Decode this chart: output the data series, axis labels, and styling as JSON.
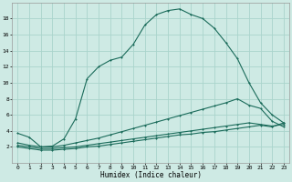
{
  "xlabel": "Humidex (Indice chaleur)",
  "background_color": "#ceeae4",
  "grid_color": "#aad4cc",
  "line_color": "#1a6b5a",
  "xlim": [
    -0.5,
    23.5
  ],
  "ylim": [
    0,
    20
  ],
  "xticks": [
    0,
    1,
    2,
    3,
    4,
    5,
    6,
    7,
    8,
    9,
    10,
    11,
    12,
    13,
    14,
    15,
    16,
    17,
    18,
    19,
    20,
    21,
    22,
    23
  ],
  "yticks": [
    2,
    4,
    6,
    8,
    10,
    12,
    14,
    16,
    18
  ],
  "series1_x": [
    0,
    1,
    2,
    3,
    4,
    5,
    6,
    7,
    8,
    9,
    10,
    11,
    12,
    13,
    14,
    15,
    16,
    17,
    18,
    19,
    20,
    21,
    22,
    23
  ],
  "series1_y": [
    3.7,
    3.2,
    2.0,
    2.1,
    3.0,
    5.5,
    10.5,
    12.0,
    12.8,
    13.2,
    14.8,
    17.2,
    18.5,
    19.0,
    19.2,
    18.5,
    18.0,
    16.8,
    15.0,
    13.0,
    10.0,
    7.5,
    6.0,
    5.0
  ],
  "series2_x": [
    0,
    1,
    2,
    3,
    4,
    5,
    6,
    7,
    8,
    9,
    10,
    11,
    12,
    13,
    14,
    15,
    16,
    17,
    18,
    19,
    20,
    21,
    22,
    23
  ],
  "series2_y": [
    2.5,
    2.2,
    2.0,
    2.0,
    2.2,
    2.5,
    2.8,
    3.1,
    3.5,
    3.9,
    4.3,
    4.7,
    5.1,
    5.5,
    5.9,
    6.3,
    6.7,
    7.1,
    7.5,
    8.0,
    7.2,
    6.8,
    5.2,
    4.5
  ],
  "series3_x": [
    0,
    1,
    2,
    3,
    4,
    5,
    6,
    7,
    8,
    9,
    10,
    11,
    12,
    13,
    14,
    15,
    16,
    17,
    18,
    19,
    20,
    21,
    22,
    23
  ],
  "series3_y": [
    2.2,
    2.0,
    1.8,
    1.8,
    1.9,
    2.0,
    2.2,
    2.4,
    2.6,
    2.8,
    3.0,
    3.2,
    3.4,
    3.6,
    3.8,
    4.0,
    4.2,
    4.4,
    4.6,
    4.8,
    5.0,
    4.8,
    4.6,
    4.8
  ],
  "series4_x": [
    0,
    1,
    2,
    3,
    4,
    5,
    6,
    7,
    8,
    9,
    10,
    11,
    12,
    13,
    14,
    15,
    16,
    17,
    18,
    19,
    20,
    21,
    22,
    23
  ],
  "series4_y": [
    2.0,
    1.8,
    1.6,
    1.6,
    1.7,
    1.8,
    2.0,
    2.1,
    2.3,
    2.5,
    2.7,
    2.9,
    3.1,
    3.3,
    3.5,
    3.6,
    3.8,
    3.9,
    4.1,
    4.3,
    4.5,
    4.7,
    4.5,
    5.0
  ]
}
